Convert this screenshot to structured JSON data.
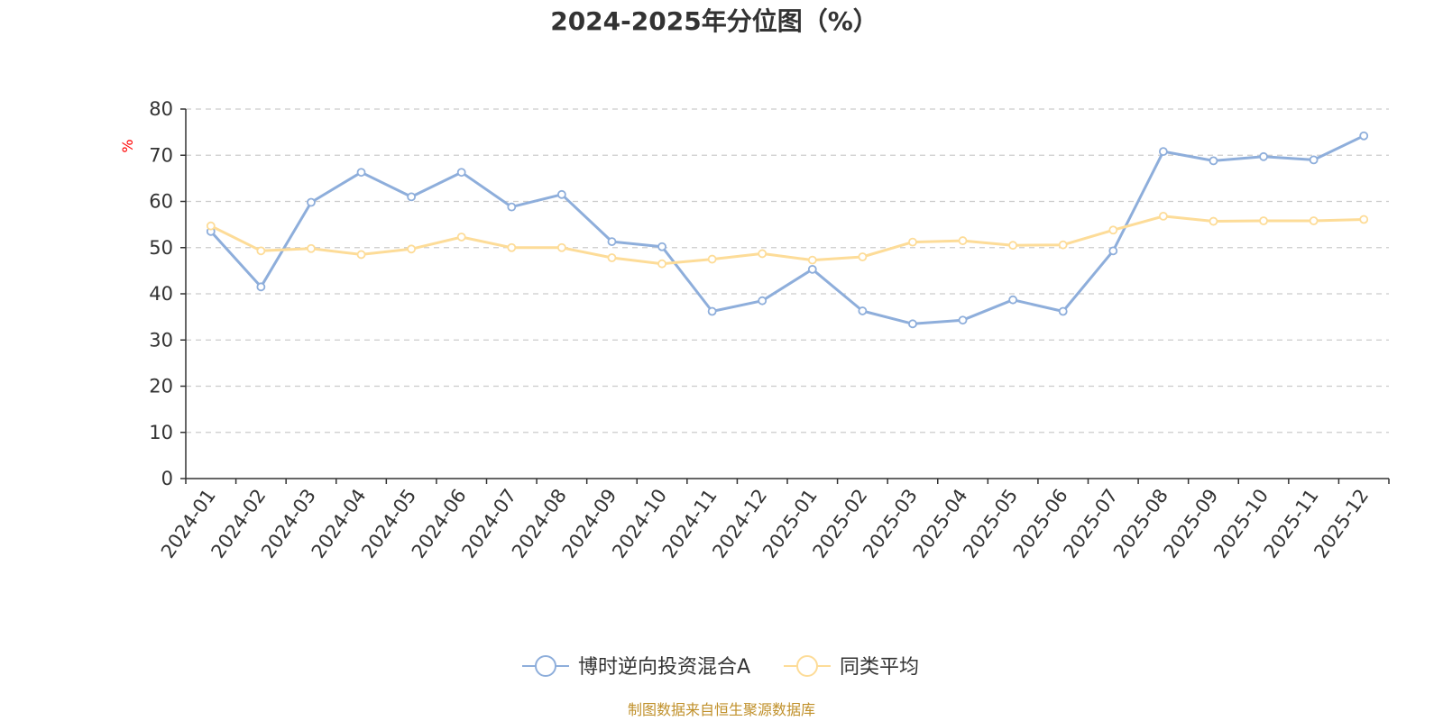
{
  "chart_data": {
    "type": "line",
    "title": "2024-2025年分位图（%）",
    "y_unit_label": "%",
    "ylim": [
      0,
      80
    ],
    "y_ticks": [
      0,
      10,
      20,
      30,
      40,
      50,
      60,
      70,
      80
    ],
    "grid": true,
    "legend_position": "bottom-center",
    "categories": [
      "2024-01",
      "2024-02",
      "2024-03",
      "2024-04",
      "2024-05",
      "2024-06",
      "2024-07",
      "2024-08",
      "2024-09",
      "2024-10",
      "2024-11",
      "2024-12",
      "2025-01",
      "2025-02",
      "2025-03",
      "2025-04",
      "2025-05",
      "2025-06",
      "2025-07",
      "2025-08",
      "2025-09",
      "2025-10",
      "2025-11",
      "2025-12"
    ],
    "series": [
      {
        "name": "博时逆向投资混合A",
        "color": "#8eaedb",
        "values": [
          53.5,
          41.5,
          59.8,
          66.3,
          61.0,
          66.3,
          58.8,
          61.5,
          51.3,
          50.2,
          36.2,
          38.5,
          45.3,
          36.3,
          33.5,
          34.3,
          38.7,
          36.2,
          49.3,
          70.8,
          68.8,
          69.7,
          69.0,
          74.2
        ]
      },
      {
        "name": "同类平均",
        "color": "#fddc98",
        "values": [
          54.7,
          49.3,
          49.8,
          48.5,
          49.7,
          52.3,
          50.0,
          50.0,
          47.8,
          46.5,
          47.5,
          48.7,
          47.3,
          48.0,
          51.2,
          51.5,
          50.5,
          50.6,
          53.8,
          56.8,
          55.7,
          55.8,
          55.8,
          56.1
        ]
      }
    ]
  },
  "footer": {
    "source": "制图数据来自恒生聚源数据库"
  }
}
